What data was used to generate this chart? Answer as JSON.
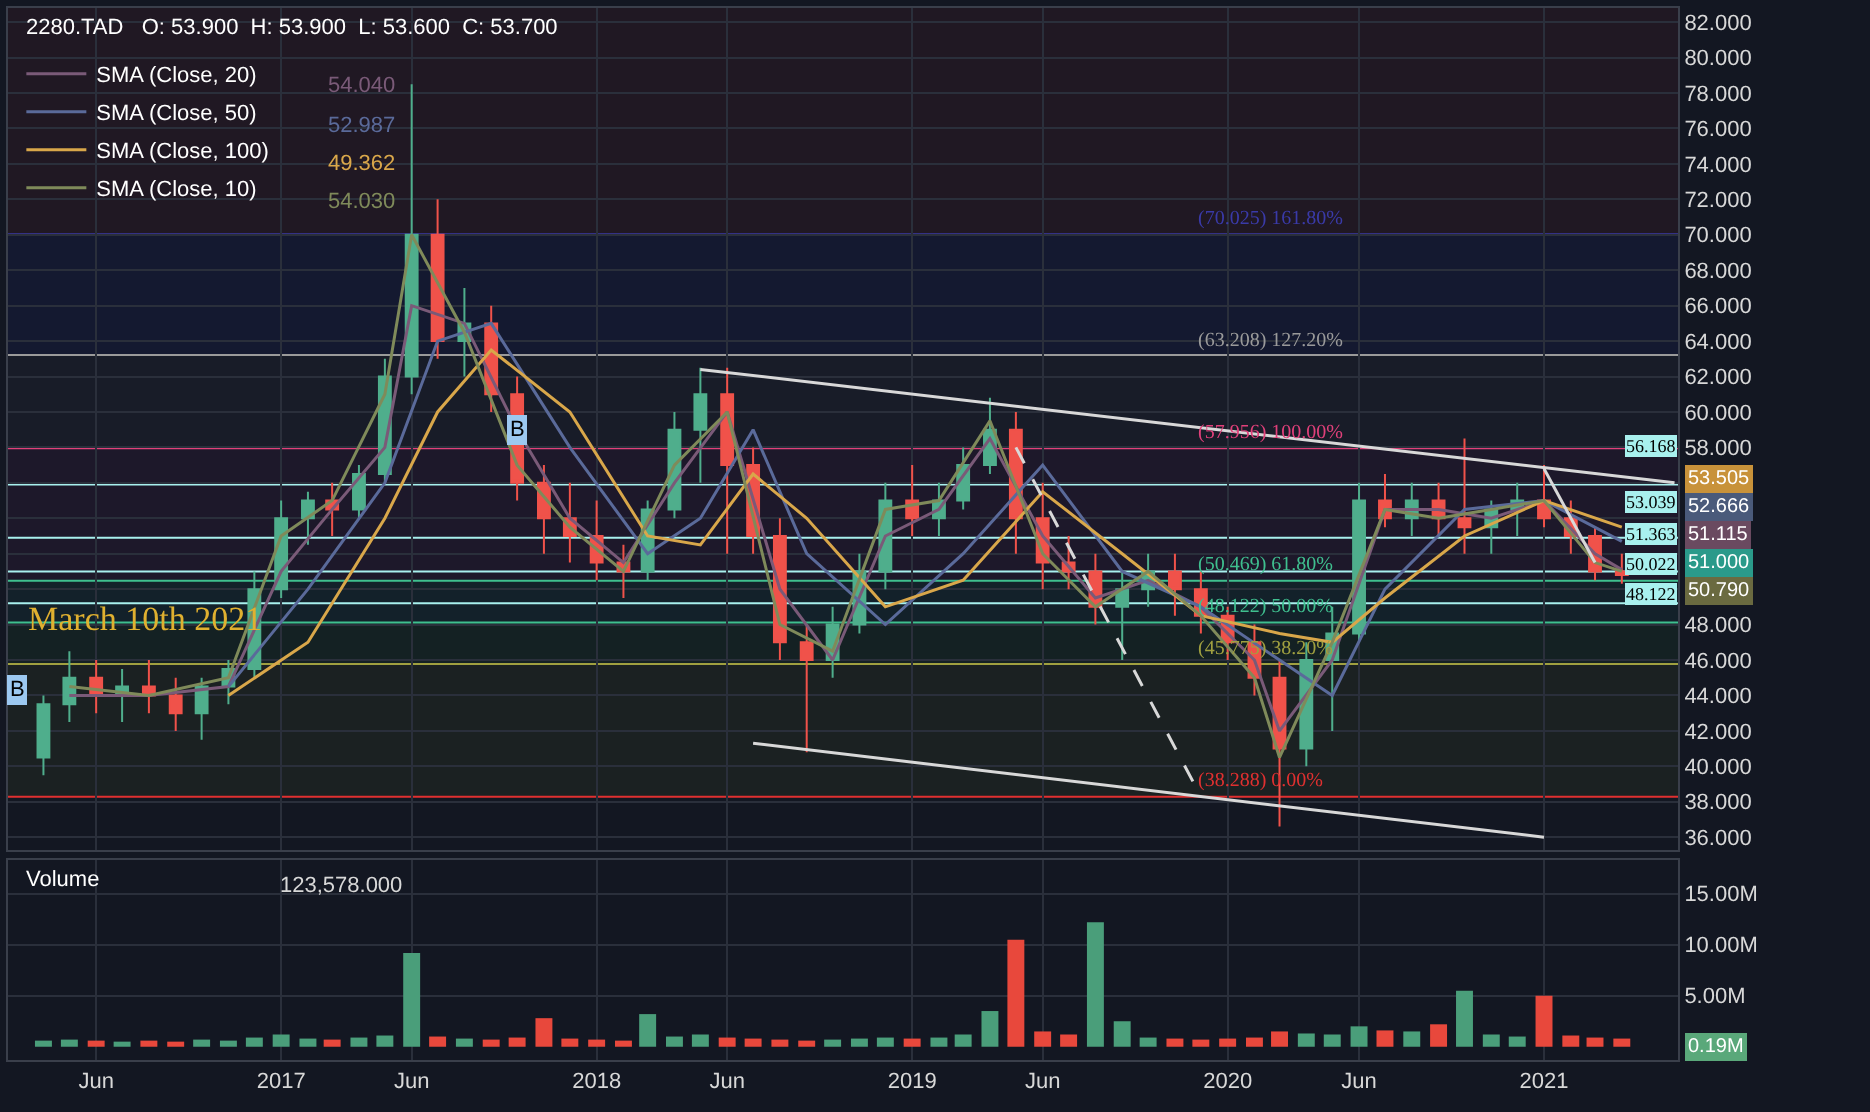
{
  "chart_data": [
    {
      "type": "candlestick",
      "title": "2280.TAD   O: 53.900  H: 53.900  L: 53.600  C: 53.700",
      "x": [
        "2016-04",
        "2016-05",
        "2016-06",
        "2016-07",
        "2016-08",
        "2016-09",
        "2016-10",
        "2016-11",
        "2016-12",
        "2017-01",
        "2017-02",
        "2017-03",
        "2017-04",
        "2017-05",
        "2017-06",
        "2017-07",
        "2017-08",
        "2017-09",
        "2017-10",
        "2017-11",
        "2017-12",
        "2018-01",
        "2018-02",
        "2018-03",
        "2018-04",
        "2018-05",
        "2018-06",
        "2018-07",
        "2018-08",
        "2018-09",
        "2018-10",
        "2018-11",
        "2018-12",
        "2019-01",
        "2019-02",
        "2019-03",
        "2019-04",
        "2019-05",
        "2019-06",
        "2019-07",
        "2019-08",
        "2019-09",
        "2019-10",
        "2019-11",
        "2019-12",
        "2020-01",
        "2020-02",
        "2020-03",
        "2020-04",
        "2020-05",
        "2020-06",
        "2020-07",
        "2020-08",
        "2020-09",
        "2020-10",
        "2020-11",
        "2020-12",
        "2021-01",
        "2021-02",
        "2021-03",
        "2021-04"
      ],
      "ohlc": [
        [
          40.5,
          44,
          39.5,
          43.5
        ],
        [
          43.5,
          46.5,
          42.5,
          45
        ],
        [
          45,
          46,
          43,
          44
        ],
        [
          44,
          45.5,
          42.5,
          44.5
        ],
        [
          44.5,
          46,
          43,
          44
        ],
        [
          44,
          45,
          42,
          43
        ],
        [
          43,
          45,
          41.5,
          44.5
        ],
        [
          44.5,
          46,
          43.5,
          45.5
        ],
        [
          45.5,
          51,
          45,
          50
        ],
        [
          50,
          55,
          49.5,
          54
        ],
        [
          54,
          55.5,
          52.5,
          55
        ],
        [
          55,
          56,
          53,
          54.5
        ],
        [
          54.5,
          57,
          54,
          56.5
        ],
        [
          56.5,
          63,
          56,
          62
        ],
        [
          62,
          78.5,
          61,
          70
        ],
        [
          70,
          72,
          63,
          64
        ],
        [
          64,
          67,
          62,
          65
        ],
        [
          65,
          66,
          60,
          61
        ],
        [
          61,
          62,
          55,
          56
        ],
        [
          56,
          57,
          52,
          54
        ],
        [
          54,
          56,
          51.5,
          53
        ],
        [
          53,
          55,
          50.5,
          51.5
        ],
        [
          51.5,
          52.5,
          49.5,
          51
        ],
        [
          51,
          55,
          50.5,
          54.5
        ],
        [
          54.5,
          60,
          54,
          59
        ],
        [
          59,
          62.5,
          56,
          61
        ],
        [
          61,
          62.5,
          52,
          57
        ],
        [
          57,
          58,
          52,
          53
        ],
        [
          53,
          54,
          46,
          47
        ],
        [
          47,
          48,
          40.8,
          46
        ],
        [
          46,
          49,
          45,
          48
        ],
        [
          48,
          52,
          47.5,
          51
        ],
        [
          51,
          56,
          50,
          55
        ],
        [
          55,
          57,
          53,
          54
        ],
        [
          54,
          56,
          53,
          55
        ],
        [
          55,
          58,
          54.5,
          57
        ],
        [
          57,
          60.8,
          56.5,
          59
        ],
        [
          59,
          60,
          52,
          54
        ],
        [
          54,
          56,
          50,
          51.5
        ],
        [
          51.5,
          53,
          50,
          51
        ],
        [
          51,
          52,
          48,
          49
        ],
        [
          49,
          51,
          46,
          50
        ],
        [
          50,
          52,
          49,
          51
        ],
        [
          51,
          52,
          48.5,
          50
        ],
        [
          50,
          51,
          47.5,
          48.5
        ],
        [
          48.5,
          49,
          46,
          47
        ],
        [
          47,
          48,
          44,
          45
        ],
        [
          45,
          46,
          36.6,
          41
        ],
        [
          41,
          47,
          40,
          46
        ],
        [
          46,
          49,
          42,
          47.5
        ],
        [
          47.5,
          56,
          47,
          55
        ],
        [
          55,
          56.5,
          53.5,
          54
        ],
        [
          54,
          56,
          53,
          55
        ],
        [
          55,
          56,
          53,
          54
        ],
        [
          54,
          58.5,
          52,
          53.5
        ],
        [
          53.5,
          55,
          52,
          54.5
        ],
        [
          54.5,
          56,
          53,
          55
        ],
        [
          55,
          57,
          53.5,
          54
        ],
        [
          54,
          55,
          52,
          53
        ],
        [
          53,
          53.5,
          50.5,
          51
        ],
        [
          51,
          52,
          50.3,
          50.8
        ]
      ],
      "colors": [
        "#4fae8c",
        "#4fae8c",
        "#f0524a",
        "#4fae8c",
        "#f0524a",
        "#f0524a",
        "#4fae8c",
        "#4fae8c",
        "#4fae8c",
        "#4fae8c",
        "#4fae8c",
        "#f0524a",
        "#4fae8c",
        "#4fae8c",
        "#4fae8c",
        "#f0524a",
        "#4fae8c",
        "#f0524a",
        "#f0524a",
        "#f0524a",
        "#f0524a",
        "#f0524a",
        "#f0524a",
        "#4fae8c",
        "#4fae8c",
        "#4fae8c",
        "#f0524a",
        "#f0524a",
        "#f0524a",
        "#f0524a",
        "#4fae8c",
        "#4fae8c",
        "#4fae8c",
        "#f0524a",
        "#4fae8c",
        "#4fae8c",
        "#4fae8c",
        "#f0524a",
        "#f0524a",
        "#f0524a",
        "#f0524a",
        "#4fae8c",
        "#4fae8c",
        "#f0524a",
        "#f0524a",
        "#f0524a",
        "#f0524a",
        "#f0524a",
        "#4fae8c",
        "#4fae8c",
        "#4fae8c",
        "#f0524a",
        "#4fae8c",
        "#f0524a",
        "#f0524a",
        "#4fae8c",
        "#4fae8c",
        "#f0524a",
        "#f0524a",
        "#f0524a",
        "#f0524a"
      ],
      "series": [
        {
          "type": "line",
          "name": "SMA (Close, 20)",
          "color": "#7a5a78",
          "x": [
            "2016-05",
            "2016-08",
            "2016-11",
            "2017-01",
            "2017-03",
            "2017-05",
            "2017-06",
            "2017-08",
            "2017-10",
            "2017-12",
            "2018-02",
            "2018-04",
            "2018-06",
            "2018-08",
            "2018-10",
            "2018-12",
            "2019-02",
            "2019-04",
            "2019-06",
            "2019-08",
            "2019-10",
            "2019-12",
            "2020-02",
            "2020-03",
            "2020-05",
            "2020-07",
            "2020-09",
            "2020-11",
            "2021-01",
            "2021-03",
            "2021-04"
          ],
          "values": [
            44,
            44,
            44.5,
            51,
            54.5,
            58,
            66,
            65,
            59,
            54,
            51.5,
            56,
            60,
            50,
            46,
            53,
            54.5,
            58.5,
            53,
            49.5,
            50.5,
            49,
            46,
            42,
            46,
            54.5,
            54.5,
            54,
            55,
            52,
            51.1
          ]
        },
        {
          "type": "line",
          "name": "SMA (Close, 50)",
          "color": "#5a6a9a",
          "x": [
            "2016-11",
            "2017-02",
            "2017-05",
            "2017-07",
            "2017-09",
            "2017-12",
            "2018-03",
            "2018-05",
            "2018-07",
            "2018-09",
            "2018-12",
            "2019-03",
            "2019-06",
            "2019-09",
            "2019-12",
            "2020-03",
            "2020-05",
            "2020-07",
            "2020-10",
            "2021-01",
            "2021-04"
          ],
          "values": [
            44.5,
            50,
            56,
            64,
            65,
            58,
            52,
            54,
            59,
            52,
            48,
            52,
            57,
            51,
            49,
            46,
            44,
            50,
            54.5,
            55,
            52.7
          ]
        },
        {
          "type": "line",
          "name": "SMA (Close, 100)",
          "color": "#d9a74a",
          "x": [
            "2016-11",
            "2017-02",
            "2017-05",
            "2017-07",
            "2017-09",
            "2017-12",
            "2018-03",
            "2018-05",
            "2018-07",
            "2018-09",
            "2018-12",
            "2019-03",
            "2019-06",
            "2019-09",
            "2019-12",
            "2020-03",
            "2020-05",
            "2020-07",
            "2020-10",
            "2021-01",
            "2021-04"
          ],
          "values": [
            44,
            47,
            54,
            60,
            63.5,
            60,
            53,
            52.5,
            56.5,
            54,
            49,
            50.5,
            55.5,
            52,
            48.5,
            47.5,
            47,
            49.5,
            53,
            55,
            53.5
          ]
        },
        {
          "type": "line",
          "name": "SMA (Close, 10)",
          "color": "#7f8a5a",
          "x": [
            "2016-05",
            "2016-08",
            "2016-11",
            "2017-01",
            "2017-03",
            "2017-05",
            "2017-06",
            "2017-08",
            "2017-10",
            "2017-12",
            "2018-02",
            "2018-04",
            "2018-06",
            "2018-08",
            "2018-10",
            "2018-12",
            "2019-02",
            "2019-04",
            "2019-06",
            "2019-08",
            "2019-10",
            "2019-12",
            "2020-02",
            "2020-03",
            "2020-05",
            "2020-07",
            "2020-09",
            "2020-11",
            "2021-01",
            "2021-03",
            "2021-04"
          ],
          "values": [
            44.5,
            44,
            45,
            53,
            55,
            61,
            70,
            64.5,
            57,
            53.5,
            51,
            57,
            60,
            48,
            46.5,
            54.5,
            55,
            59.5,
            52,
            49,
            51,
            48.5,
            45,
            40.5,
            47,
            54.5,
            54,
            54.5,
            55,
            51.5,
            51
          ]
        },
        {
          "type": "line",
          "color": "#d8d8d8",
          "x": [
            "2018-05",
            "2021-06"
          ],
          "values": [
            62.4,
            56.0
          ]
        },
        {
          "type": "line",
          "color": "#d8d8d8",
          "x": [
            "2018-07",
            "2021-01"
          ],
          "values": [
            41.3,
            36.0
          ]
        },
        {
          "type": "line",
          "color": "#d8d8d8",
          "line_style": "dashed",
          "x": [
            "2019-05",
            "2019-12"
          ],
          "values": [
            58.0,
            38.3
          ]
        },
        {
          "type": "line",
          "color": "#d8d8d8",
          "x": [
            "2021-01",
            "2021-03"
          ],
          "values": [
            56.8,
            51.5
          ]
        }
      ],
      "ref_lines": [
        {
          "axis": "y",
          "value": 70.025,
          "label": "(70.025) 161.80%",
          "color": "#3a3aa8"
        },
        {
          "axis": "y",
          "value": 63.208,
          "label": "(63.208) 127.20%",
          "color": "#9a9a9a"
        },
        {
          "axis": "y",
          "value": 57.956,
          "label": "(57.956) 100.00%",
          "color": "#e0407a"
        },
        {
          "axis": "y",
          "value": 50.469,
          "label": "(50.469) 61.80%",
          "color": "#3fbf8f"
        },
        {
          "axis": "y",
          "value": 48.122,
          "label": "(48.122) 50.00%",
          "color": "#3fbf8f"
        },
        {
          "axis": "y",
          "value": 45.775,
          "label": "(45.775) 38.20%",
          "color": "#a0a040"
        },
        {
          "axis": "y",
          "value": 38.288,
          "label": "(38.288) 0.00%",
          "color": "#e03030"
        },
        {
          "axis": "y",
          "value": 55.9,
          "color": "#a8f0ee"
        },
        {
          "axis": "y",
          "value": 52.9,
          "color": "#a8f0ee"
        },
        {
          "axis": "y",
          "value": 51.0,
          "color": "#a8f0ee"
        },
        {
          "axis": "y",
          "value": 49.2,
          "color": "#a8f0ee"
        }
      ],
      "bands": [
        {
          "axis": "y",
          "from": 70.025,
          "to": 82.8,
          "color": "#6a1f2a"
        },
        {
          "axis": "y",
          "from": 63.208,
          "to": 70.025,
          "color": "#22287a"
        },
        {
          "axis": "y",
          "from": 57.956,
          "to": 63.208,
          "color": "#3a3a48"
        },
        {
          "axis": "y",
          "from": 50.469,
          "to": 57.956,
          "color": "#5a2058"
        },
        {
          "axis": "y",
          "from": 48.122,
          "to": 50.469,
          "color": "#1a5a58"
        },
        {
          "axis": "y",
          "from": 45.775,
          "to": 48.122,
          "color": "#1f5a2a"
        },
        {
          "axis": "y",
          "from": 38.288,
          "to": 45.775,
          "color": "#4a5a25"
        }
      ],
      "annotations": [
        "54.040",
        "52.987",
        "49.362",
        "54.030",
        "March 10th 2021",
        "56.168",
        "53.039",
        "51.363",
        "50.022",
        "48.122",
        "53.505",
        "52.666",
        "51.115",
        "51.000",
        "50.790",
        {
          "text": "B",
          "x": "2016-03",
          "y": 44.3
        },
        {
          "text": "B",
          "x": "2017-10",
          "y": 59
        }
      ],
      "xlim": [
        "2016-02-20",
        "2021-06-05"
      ],
      "xticks": [
        {
          "value": "2016-06",
          "label": null
        },
        {
          "value": "2017-01",
          "label": null
        },
        {
          "value": "2017-06",
          "label": null
        },
        {
          "value": "2018-01",
          "label": null
        },
        {
          "value": "2018-06",
          "label": null
        },
        {
          "value": "2019-01",
          "label": null
        },
        {
          "value": "2019-06",
          "label": null
        },
        {
          "value": "2020-01",
          "label": null
        },
        {
          "value": "2020-06",
          "label": null
        },
        {
          "value": "2021-01",
          "label": null
        }
      ],
      "ylim": [
        35.3,
        82.8
      ],
      "yticks": [
        {
          "value": 36,
          "label": "36.000"
        },
        {
          "value": 38,
          "label": "38.000"
        },
        {
          "value": 40,
          "label": "40.000"
        },
        {
          "value": 42,
          "label": "42.000"
        },
        {
          "value": 44,
          "label": "44.000"
        },
        {
          "value": 46,
          "label": "46.000"
        },
        {
          "value": 48,
          "label": "48.000"
        },
        {
          "value": 50,
          "label": null
        },
        {
          "value": 52,
          "label": null
        },
        {
          "value": 54,
          "label": null
        },
        {
          "value": 56,
          "label": null
        },
        {
          "value": 58,
          "label": "58.000"
        },
        {
          "value": 60,
          "label": "60.000"
        },
        {
          "value": 62,
          "label": "62.000"
        },
        {
          "value": 64,
          "label": "64.000"
        },
        {
          "value": 66,
          "label": "66.000"
        },
        {
          "value": 68,
          "label": "68.000"
        },
        {
          "value": 70,
          "label": "70.000"
        },
        {
          "value": 72,
          "label": "72.000"
        },
        {
          "value": 74,
          "label": "74.000"
        },
        {
          "value": 76,
          "label": "76.000"
        },
        {
          "value": 78,
          "label": "78.000"
        },
        {
          "value": 80,
          "label": "80.000"
        },
        {
          "value": 82,
          "label": "82.000"
        }
      ],
      "tick_labels": "y",
      "grid": true,
      "legend": "top left"
    },
    {
      "type": "bar",
      "title": "Volume",
      "x": [
        "2016-04",
        "2016-05",
        "2016-06",
        "2016-07",
        "2016-08",
        "2016-09",
        "2016-10",
        "2016-11",
        "2016-12",
        "2017-01",
        "2017-02",
        "2017-03",
        "2017-04",
        "2017-05",
        "2017-06",
        "2017-07",
        "2017-08",
        "2017-09",
        "2017-10",
        "2017-11",
        "2017-12",
        "2018-01",
        "2018-02",
        "2018-03",
        "2018-04",
        "2018-05",
        "2018-06",
        "2018-07",
        "2018-08",
        "2018-09",
        "2018-10",
        "2018-11",
        "2018-12",
        "2019-01",
        "2019-02",
        "2019-03",
        "2019-04",
        "2019-05",
        "2019-06",
        "2019-07",
        "2019-08",
        "2019-09",
        "2019-10",
        "2019-11",
        "2019-12",
        "2020-01",
        "2020-02",
        "2020-03",
        "2020-04",
        "2020-05",
        "2020-06",
        "2020-07",
        "2020-08",
        "2020-09",
        "2020-10",
        "2020-11",
        "2020-12",
        "2021-01",
        "2021-02",
        "2021-03",
        "2021-04"
      ],
      "values": [
        0.6,
        0.7,
        0.6,
        0.5,
        0.6,
        0.5,
        0.7,
        0.6,
        0.9,
        1.2,
        0.8,
        0.7,
        0.9,
        1.1,
        9.2,
        1.0,
        0.8,
        0.7,
        0.9,
        2.8,
        0.8,
        0.7,
        0.6,
        3.2,
        1.0,
        1.2,
        0.9,
        0.8,
        0.7,
        0.6,
        0.7,
        0.8,
        0.9,
        0.8,
        0.9,
        1.2,
        3.5,
        10.5,
        1.5,
        1.2,
        12.2,
        2.5,
        0.9,
        0.8,
        0.7,
        0.8,
        0.9,
        1.5,
        1.3,
        1.2,
        2.0,
        1.6,
        1.5,
        2.2,
        5.5,
        1.2,
        1.0,
        5.0,
        1.1,
        0.9,
        0.8
      ],
      "colors": [
        "#4a9e7a",
        "#4a9e7a",
        "#e8483c",
        "#4a9e7a",
        "#e8483c",
        "#e8483c",
        "#4a9e7a",
        "#4a9e7a",
        "#4a9e7a",
        "#4a9e7a",
        "#4a9e7a",
        "#e8483c",
        "#4a9e7a",
        "#4a9e7a",
        "#4a9e7a",
        "#e8483c",
        "#4a9e7a",
        "#e8483c",
        "#e8483c",
        "#e8483c",
        "#e8483c",
        "#e8483c",
        "#e8483c",
        "#4a9e7a",
        "#4a9e7a",
        "#4a9e7a",
        "#e8483c",
        "#e8483c",
        "#e8483c",
        "#e8483c",
        "#4a9e7a",
        "#4a9e7a",
        "#4a9e7a",
        "#e8483c",
        "#4a9e7a",
        "#4a9e7a",
        "#4a9e7a",
        "#e8483c",
        "#e8483c",
        "#e8483c",
        "#4a9e7a",
        "#4a9e7a",
        "#4a9e7a",
        "#e8483c",
        "#e8483c",
        "#e8483c",
        "#e8483c",
        "#e8483c",
        "#4a9e7a",
        "#4a9e7a",
        "#4a9e7a",
        "#e8483c",
        "#4a9e7a",
        "#e8483c",
        "#4a9e7a",
        "#4a9e7a",
        "#4a9e7a",
        "#e8483c",
        "#e8483c",
        "#e8483c",
        "#e8483c"
      ],
      "annotations": [
        "123,578.000",
        "0.19M"
      ],
      "xlim": [
        "2016-02-20",
        "2021-06-05"
      ],
      "xticks": [
        {
          "value": "2016-06",
          "label": "Jun"
        },
        {
          "value": "2017-01",
          "label": "2017"
        },
        {
          "value": "2017-06",
          "label": "Jun"
        },
        {
          "value": "2018-01",
          "label": "2018"
        },
        {
          "value": "2018-06",
          "label": "Jun"
        },
        {
          "value": "2019-01",
          "label": "2019"
        },
        {
          "value": "2019-06",
          "label": "Jun"
        },
        {
          "value": "2020-01",
          "label": "2020"
        },
        {
          "value": "2020-06",
          "label": "Jun"
        },
        {
          "value": "2021-01",
          "label": "2021"
        }
      ],
      "ylim": [
        -1.3,
        18.3
      ],
      "yticks": [
        {
          "value": 5,
          "label": "5.00M"
        },
        {
          "value": 10,
          "label": "10.00M"
        },
        {
          "value": 15,
          "label": "15.00M"
        }
      ],
      "grid": true
    }
  ]
}
